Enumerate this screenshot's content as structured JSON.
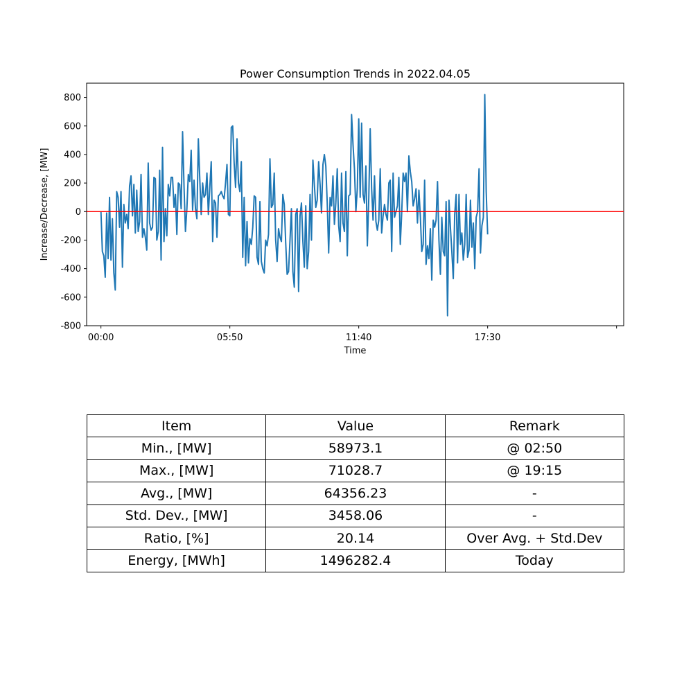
{
  "chart_data": {
    "type": "line",
    "title": "Power Consumption Trends in 2022.04.05",
    "xlabel": "Time",
    "ylabel": "Increase/Decrease, [MW]",
    "xlim": [
      -10,
      365
    ],
    "ylim": [
      -800,
      900
    ],
    "x_ticks": [
      {
        "value": 0,
        "label": "00:00"
      },
      {
        "value": 90,
        "label": "05:50"
      },
      {
        "value": 180,
        "label": "11:40"
      },
      {
        "value": 270,
        "label": "17:30"
      },
      {
        "value": 360,
        "label": ""
      }
    ],
    "y_ticks": [
      -800,
      -600,
      -400,
      -200,
      0,
      200,
      400,
      600,
      800
    ],
    "reference_line": {
      "y": 0,
      "color": "#ff0000"
    },
    "series": [
      {
        "name": "Increase/Decrease",
        "color": "#1f77b4",
        "values": [
          0,
          -280,
          -310,
          -460,
          -10,
          -330,
          100,
          -340,
          -50,
          -430,
          -550,
          140,
          100,
          -110,
          140,
          -390,
          50,
          -80,
          -20,
          -120,
          180,
          250,
          -30,
          190,
          -150,
          150,
          -140,
          -70,
          260,
          -180,
          -120,
          -180,
          -270,
          340,
          -80,
          -130,
          -110,
          240,
          230,
          -200,
          -140,
          290,
          -340,
          450,
          -210,
          20,
          -170,
          190,
          110,
          240,
          240,
          30,
          120,
          -160,
          200,
          190,
          20,
          560,
          180,
          -140,
          20,
          260,
          210,
          430,
          10,
          220,
          20,
          -50,
          510,
          230,
          -20,
          200,
          100,
          120,
          270,
          -20,
          170,
          350,
          -210,
          80,
          60,
          -180,
          110,
          120,
          140,
          110,
          90,
          200,
          330,
          -20,
          -30,
          590,
          600,
          340,
          170,
          510,
          200,
          140,
          350,
          -320,
          100,
          -380,
          -70,
          -360,
          -190,
          -230,
          -110,
          110,
          100,
          -320,
          -370,
          70,
          -350,
          -400,
          -430,
          -200,
          -240,
          -160,
          370,
          30,
          50,
          270,
          -200,
          -350,
          -120,
          -180,
          -210,
          120,
          50,
          -220,
          -440,
          -420,
          -200,
          20,
          -420,
          -530,
          -20,
          20,
          -560,
          -30,
          60,
          -210,
          -390,
          40,
          -400,
          -280,
          120,
          -200,
          360,
          190,
          30,
          80,
          350,
          190,
          -10,
          330,
          400,
          320,
          60,
          -290,
          100,
          40,
          250,
          -90,
          60,
          300,
          -100,
          -210,
          270,
          -80,
          -140,
          280,
          -310,
          110,
          120,
          680,
          470,
          300,
          0,
          160,
          650,
          100,
          620,
          120,
          60,
          320,
          -240,
          90,
          580,
          160,
          -60,
          250,
          -70,
          -130,
          -60,
          300,
          -150,
          -30,
          50,
          -20,
          -60,
          200,
          220,
          -280,
          270,
          -40,
          0,
          40,
          240,
          -230,
          -10,
          270,
          210,
          270,
          0,
          390,
          280,
          210,
          40,
          90,
          160,
          -80,
          150,
          -30,
          -280,
          -230,
          220,
          -370,
          -240,
          -330,
          -120,
          -480,
          -60,
          -110,
          -60,
          210,
          -200,
          -440,
          -40,
          -280,
          -310,
          70,
          -730,
          80,
          -110,
          -280,
          -470,
          -20,
          120,
          -360,
          120,
          -230,
          -150,
          -340,
          -230,
          120,
          -320,
          -270,
          80,
          -250,
          -80,
          -400,
          -40,
          0,
          300,
          -290,
          -100,
          -40,
          820,
          140,
          -160
        ]
      }
    ]
  },
  "table": {
    "headers": [
      "Item",
      "Value",
      "Remark"
    ],
    "rows": [
      [
        "Min., [MW]",
        "58973.1",
        "@ 02:50"
      ],
      [
        "Max., [MW]",
        "71028.7",
        "@ 19:15"
      ],
      [
        "Avg., [MW]",
        "64356.23",
        "-"
      ],
      [
        "Std. Dev., [MW]",
        "3458.06",
        "-"
      ],
      [
        "Ratio, [%]",
        "20.14",
        "Over Avg. + Std.Dev"
      ],
      [
        "Energy, [MWh]",
        "1496282.4",
        "Today"
      ]
    ]
  }
}
